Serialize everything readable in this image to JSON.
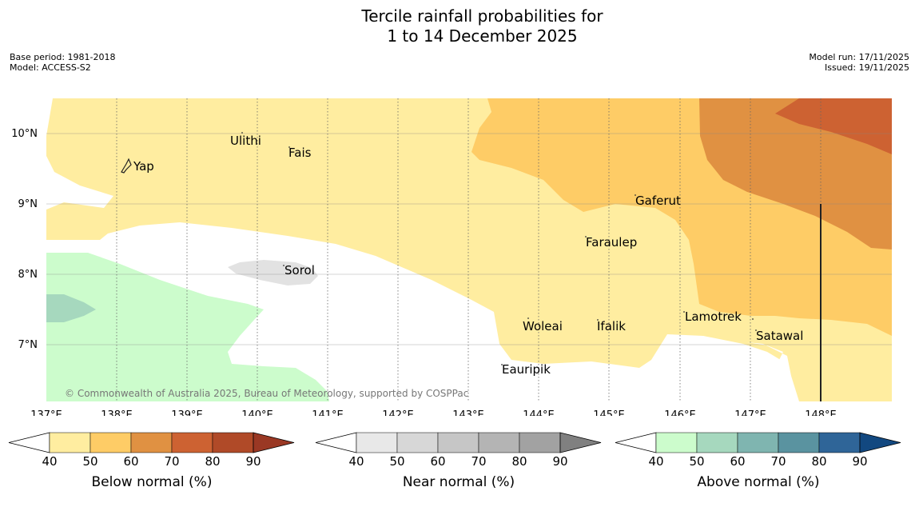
{
  "title": {
    "line1": "Tercile rainfall probabilities for",
    "line2": "1 to 14 December 2025"
  },
  "meta_left": {
    "base_period": "Base period: 1981-2018",
    "model": "Model: ACCESS-S2"
  },
  "meta_right": {
    "model_run": "Model run: 17/11/2025",
    "issued": "Issued: 19/11/2025"
  },
  "map": {
    "lat_labels": [
      "10°N",
      "9°N",
      "8°N",
      "7°N"
    ],
    "lon_labels": [
      "137°E",
      "138°E",
      "139°E",
      "140°E",
      "141°E",
      "142°E",
      "143°E",
      "144°E",
      "145°E",
      "146°E",
      "147°E",
      "148°E"
    ],
    "places": [
      "Yap",
      "Ulithi",
      "Fais",
      "Sorol",
      "Gaferut",
      "Faraulep",
      "Woleai",
      "Ifalik",
      "Lamotrek",
      "Satawal",
      "Eauripik"
    ],
    "copyright": "© Commonwealth of Australia 2025, Bureau of Meteorology, supported by COSPPac"
  },
  "colorbars": {
    "ticks": [
      "40",
      "50",
      "60",
      "70",
      "80",
      "90"
    ],
    "below": {
      "label": "Below normal (%)",
      "colors": [
        "#ffeda0",
        "#fecc66",
        "#e09142",
        "#cd6232",
        "#b04a28",
        "#9a3824"
      ]
    },
    "near": {
      "label": "Near normal (%)",
      "colors": [
        "#e8e8e8",
        "#d7d7d7",
        "#c6c6c6",
        "#b4b4b4",
        "#a2a2a2",
        "#808080"
      ]
    },
    "above": {
      "label": "Above normal (%)",
      "colors": [
        "#ccfccc",
        "#a6d8be",
        "#7fb5b0",
        "#5a93a0",
        "#2f6598",
        "#124880"
      ]
    }
  }
}
